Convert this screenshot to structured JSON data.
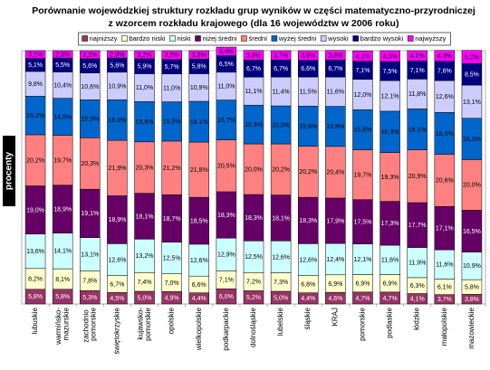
{
  "chart_data": {
    "type": "stacked_bar",
    "title": [
      "Porównanie wojewódzkiej struktury rozkładu grup wyników w części matematyczno-przyrodniczej",
      "z wzorcem rozkładu krajowego (dla 16 województw w 2006 roku)"
    ],
    "y_label": "procenty",
    "ylim": [
      0,
      100
    ],
    "legend": "top",
    "categories": [
      "lubuskie",
      "warmińsko-mazurskie",
      "zachodnio pomorskie",
      "świętokrzyskie",
      "kujawsko-pomorskie",
      "opolskie",
      "wielkopolskie",
      "podkarpackie",
      "dolnośląskie",
      "lubelskie",
      "śląskie",
      "KRAJ",
      "pomorskie",
      "podlaskie",
      "łódzkie",
      "małopolskie",
      "mazowieckie"
    ],
    "series": [
      {
        "name": "najniższy",
        "color": "#993366",
        "label_color": "#ffffff",
        "values": [
          5.8,
          5.8,
          5.3,
          4.5,
          5.0,
          4.9,
          4.4,
          6.0,
          5.2,
          5.0,
          4.4,
          4.6,
          4.7,
          4.7,
          4.1,
          3.7,
          3.8
        ],
        "value_labels": [
          "5,8%",
          "5,8%",
          "5,3%",
          "4,5%",
          "5,0%",
          "4,9%",
          "4,4%",
          "6,0%",
          "5,2%",
          "5,0%",
          "4,4%",
          "4,6%",
          "4,7%",
          "4,7%",
          "4,1%",
          "3,7%",
          "3,8%"
        ]
      },
      {
        "name": "bardzo niski",
        "color": "#ffffcc",
        "label_color": "#000000",
        "values": [
          8.2,
          8.1,
          7.8,
          6.7,
          7.4,
          7.0,
          6.6,
          7.1,
          7.2,
          7.3,
          6.8,
          6.9,
          6.9,
          6.9,
          6.3,
          6.1,
          5.8
        ],
        "value_labels": [
          "8,2%",
          "8,1%",
          "7,8%",
          "6,7%",
          "7,4%",
          "7,0%",
          "6,6%",
          "7,1%",
          "7,2%",
          "7,3%",
          "6,8%",
          "6,9%",
          "6,9%",
          "6,9%",
          "6,3%",
          "6,1%",
          "5,8%"
        ]
      },
      {
        "name": "niski",
        "color": "#ccffff",
        "label_color": "#000000",
        "values": [
          13.6,
          14.1,
          13.1,
          12.6,
          13.2,
          12.5,
          12.6,
          12.9,
          12.5,
          12.6,
          12.6,
          12.4,
          12.1,
          11.6,
          11.9,
          11.6,
          10.9
        ],
        "value_labels": [
          "13,6%",
          "14,1%",
          "13,1%",
          "12,6%",
          "13,2%",
          "12,5%",
          "12,6%",
          "12,9%",
          "12,5%",
          "12,6%",
          "12,6%",
          "12,4%",
          "12,1%",
          "11,6%",
          "11,9%",
          "11,6%",
          "10,9%"
        ]
      },
      {
        "name": "niżej średni",
        "color": "#660066",
        "label_color": "#ffffff",
        "values": [
          19.0,
          18.9,
          19.1,
          18.9,
          18.1,
          18.7,
          18.5,
          18.3,
          18.3,
          18.1,
          18.3,
          17.9,
          17.5,
          17.3,
          17.7,
          17.1,
          16.5
        ],
        "value_labels": [
          "19,0%",
          "18,9%",
          "19,1%",
          "18,9%",
          "18,1%",
          "18,7%",
          "18,5%",
          "18,3%",
          "18,3%",
          "18,1%",
          "18,3%",
          "17,9%",
          "17,5%",
          "17,3%",
          "17,7%",
          "17,1%",
          "16,5%"
        ]
      },
      {
        "name": "średni",
        "color": "#ff8080",
        "label_color": "#000000",
        "values": [
          20.2,
          19.7,
          20.3,
          21.9,
          20.3,
          21.2,
          21.8,
          20.5,
          20.0,
          20.2,
          20.2,
          20.4,
          19.7,
          19.3,
          20.9,
          20.6,
          20.0
        ],
        "value_labels": [
          "20,2%",
          "19,7%",
          "20,3%",
          "21,9%",
          "20,3%",
          "21,2%",
          "21,8%",
          "20,5%",
          "20,0%",
          "20,2%",
          "20,2%",
          "20,4%",
          "19,7%",
          "19,3%",
          "20,9%",
          "20,6%",
          "20,0%"
        ]
      },
      {
        "name": "wyżej średni",
        "color": "#0066cc",
        "label_color": "#000000",
        "values": [
          15.2,
          14.6,
          15.0,
          16.0,
          15.9,
          15.5,
          16.1,
          15.7,
          15.3,
          15.0,
          15.8,
          15.8,
          15.8,
          16.3,
          16.1,
          16.5,
          16.3
        ],
        "value_labels": [
          "15,2%",
          "14,6%",
          "15,0%",
          "16,0%",
          "15,9%",
          "15,5%",
          "16,1%",
          "15,7%",
          "15,3%",
          "15,0%",
          "15,8%",
          "15,8%",
          "15,8%",
          "16,3%",
          "16,1%",
          "16,5%",
          "16,3%"
        ]
      },
      {
        "name": "wysoki",
        "color": "#ccccff",
        "label_color": "#000000",
        "values": [
          9.8,
          10.4,
          10.6,
          10.9,
          11.0,
          11.0,
          10.9,
          11.0,
          11.1,
          11.4,
          11.5,
          11.6,
          12.0,
          12.1,
          11.8,
          12.6,
          13.1
        ],
        "value_labels": [
          "9,8%",
          "10,4%",
          "10,6%",
          "10,9%",
          "11,0%",
          "11,0%",
          "10,9%",
          "11,0%",
          "11,1%",
          "11,4%",
          "11,5%",
          "11,6%",
          "12,0%",
          "12,1%",
          "11,8%",
          "12,6%",
          "13,1%"
        ]
      },
      {
        "name": "bardzo wysoki",
        "color": "#000080",
        "label_color": "#ffffff",
        "values": [
          5.1,
          5.5,
          5.6,
          5.6,
          5.9,
          5.7,
          5.8,
          6.5,
          6.7,
          6.7,
          6.6,
          6.7,
          7.1,
          7.5,
          7.1,
          7.6,
          8.5
        ],
        "value_labels": [
          "5,1%",
          "5,5%",
          "5,6%",
          "5,6%",
          "5,9%",
          "5,7%",
          "5,8%",
          "6,5%",
          "6,7%",
          "6,7%",
          "6,6%",
          "6,7%",
          "7,1%",
          "7,5%",
          "7,1%",
          "7,6%",
          "8,5%"
        ]
      },
      {
        "name": "najwyższy",
        "color": "#ff00ff",
        "label_color": "#000000",
        "values": [
          3.1,
          2.9,
          3.2,
          2.9,
          3.2,
          3.5,
          3.3,
          3.4,
          3.8,
          3.7,
          3.8,
          3.8,
          4.1,
          4.3,
          4.1,
          4.3,
          5.2
        ],
        "value_labels": [
          "3,1%",
          "2,9%",
          "3,2%",
          "2,9%",
          "3,2%",
          "3,5%",
          "3,3%",
          "3,4%",
          "3,8%",
          "3,7%",
          "3,8%",
          "3,8%",
          "4,1%",
          "4,3%",
          "4,1%",
          "4,3%",
          "5,2%"
        ]
      }
    ]
  }
}
